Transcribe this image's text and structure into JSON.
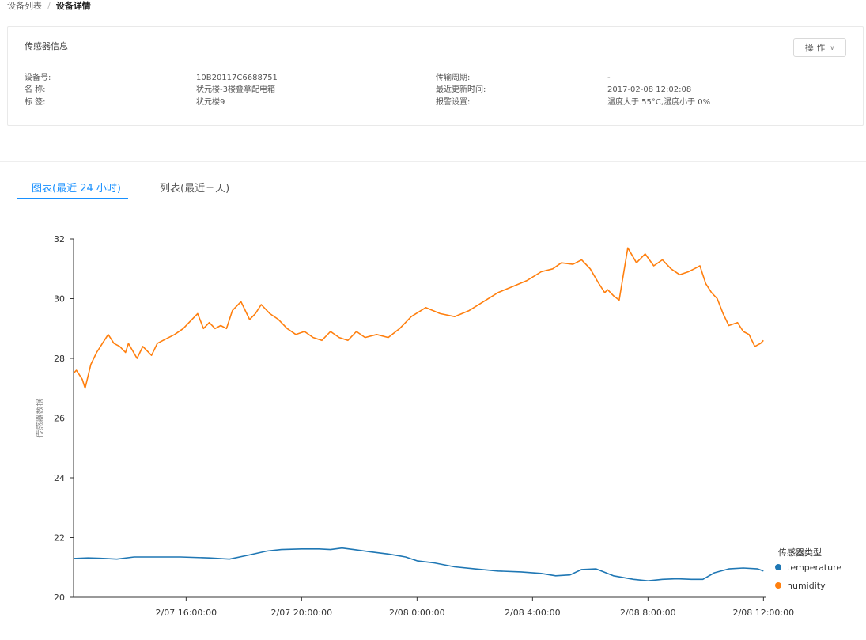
{
  "breadcrumb": {
    "parent": "设备列表",
    "separator": "/",
    "current": "设备详情"
  },
  "info": {
    "title": "传感器信息",
    "action_label": "操 作",
    "fields": [
      {
        "label": "设备号:",
        "value": "10B20117C6688751"
      },
      {
        "label": "名 称:",
        "value": "状元楼-3楼叠拿配电箱"
      },
      {
        "label": "标 签:",
        "value": "状元楼9"
      },
      {
        "label": "传输周期:",
        "value": "-"
      },
      {
        "label": "最近更新时间:",
        "value": "2017-02-08 12:02:08"
      },
      {
        "label": "报警设置:",
        "value": "温度大于 55°C,湿度小于 0%"
      }
    ]
  },
  "tabs": [
    {
      "label": "图表(最近 24 小时)",
      "active": true
    },
    {
      "label": "列表(最近三天)",
      "active": false
    }
  ],
  "chart_data": {
    "type": "line",
    "ylabel": "传感器数据",
    "ylim": [
      20,
      32
    ],
    "yticks": [
      20,
      22,
      24,
      26,
      28,
      30,
      32
    ],
    "x_ticks": [
      "2/07 16:00:00",
      "2/07 20:00:00",
      "2/08 0:00:00",
      "2/08 4:00:00",
      "2/08 8:00:00",
      "2/08 12:00:00"
    ],
    "x_tick_hours": [
      16,
      20,
      24,
      28,
      32,
      36
    ],
    "xlim_hours": [
      12.1,
      36.1
    ],
    "legend_title": "传感器类型",
    "legend_position": "bottom-right",
    "series": [
      {
        "name": "temperature",
        "color": "#1f77b4",
        "x_hours": [
          12.1,
          12.6,
          13.2,
          13.6,
          14.2,
          15.0,
          15.8,
          16.8,
          17.5,
          18.2,
          18.8,
          19.3,
          20.0,
          20.6,
          21.0,
          21.4,
          21.8,
          22.4,
          23.0,
          23.6,
          24.0,
          24.6,
          25.3,
          26.0,
          26.8,
          27.6,
          28.3,
          28.8,
          29.3,
          29.7,
          30.2,
          30.8,
          31.5,
          32.0,
          32.5,
          33.0,
          33.5,
          33.9,
          34.3,
          34.8,
          35.3,
          35.8,
          36.0
        ],
        "values": [
          21.3,
          21.32,
          21.3,
          21.28,
          21.35,
          21.35,
          21.35,
          21.32,
          21.28,
          21.42,
          21.55,
          21.6,
          21.62,
          21.62,
          21.6,
          21.65,
          21.6,
          21.52,
          21.45,
          21.35,
          21.22,
          21.15,
          21.02,
          20.95,
          20.88,
          20.85,
          20.8,
          20.72,
          20.75,
          20.93,
          20.95,
          20.72,
          20.6,
          20.55,
          20.6,
          20.62,
          20.6,
          20.6,
          20.82,
          20.95,
          20.98,
          20.95,
          20.88
        ]
      },
      {
        "name": "humidity",
        "color": "#ff7f0e",
        "x_hours": [
          12.1,
          12.2,
          12.4,
          12.5,
          12.7,
          12.9,
          13.1,
          13.3,
          13.5,
          13.7,
          13.9,
          14.0,
          14.3,
          14.5,
          14.8,
          15.0,
          15.2,
          15.6,
          15.9,
          16.2,
          16.4,
          16.6,
          16.8,
          17.0,
          17.2,
          17.4,
          17.6,
          17.9,
          18.2,
          18.4,
          18.6,
          18.9,
          19.2,
          19.5,
          19.8,
          20.1,
          20.4,
          20.7,
          21.0,
          21.3,
          21.6,
          21.9,
          22.2,
          22.6,
          23.0,
          23.4,
          23.8,
          24.3,
          24.8,
          25.3,
          25.8,
          26.3,
          26.8,
          27.3,
          27.8,
          28.3,
          28.7,
          29.0,
          29.4,
          29.7,
          30.0,
          30.3,
          30.5,
          30.6,
          30.8,
          31.0,
          31.3,
          31.6,
          31.9,
          32.2,
          32.5,
          32.8,
          33.1,
          33.4,
          33.6,
          33.8,
          34.0,
          34.2,
          34.4,
          34.6,
          34.8,
          35.1,
          35.3,
          35.5,
          35.7,
          35.9,
          36.0
        ],
        "values": [
          27.5,
          27.6,
          27.3,
          27.0,
          27.8,
          28.2,
          28.5,
          28.8,
          28.5,
          28.4,
          28.2,
          28.5,
          28.0,
          28.4,
          28.1,
          28.5,
          28.6,
          28.8,
          29.0,
          29.3,
          29.5,
          29.0,
          29.2,
          29.0,
          29.1,
          29.0,
          29.6,
          29.9,
          29.3,
          29.5,
          29.8,
          29.5,
          29.3,
          29.0,
          28.8,
          28.9,
          28.7,
          28.6,
          28.9,
          28.7,
          28.6,
          28.9,
          28.7,
          28.8,
          28.7,
          29.0,
          29.4,
          29.7,
          29.5,
          29.4,
          29.6,
          29.9,
          30.2,
          30.4,
          30.6,
          30.9,
          31.0,
          31.2,
          31.15,
          31.3,
          31.0,
          30.5,
          30.2,
          30.3,
          30.1,
          29.95,
          31.7,
          31.2,
          31.5,
          31.1,
          31.3,
          31.0,
          30.8,
          30.9,
          31.0,
          31.1,
          30.5,
          30.2,
          30.0,
          29.5,
          29.1,
          29.2,
          28.9,
          28.8,
          28.4,
          28.5,
          28.6
        ]
      }
    ]
  }
}
